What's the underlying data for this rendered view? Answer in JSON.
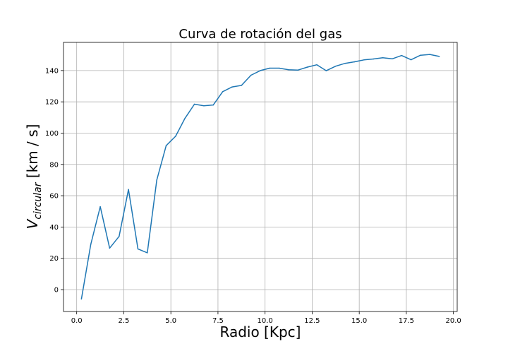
{
  "chart_data": {
    "type": "line",
    "title": "Curva de rotación del gas",
    "xlabel": "Radio [Kpc]",
    "ylabel_main": "V",
    "ylabel_sub": "circular",
    "ylabel_units": " [km / s]",
    "xlim": [
      -0.7,
      20.2
    ],
    "ylim": [
      -14,
      158
    ],
    "xticks": [
      0.0,
      2.5,
      5.0,
      7.5,
      10.0,
      12.5,
      15.0,
      17.5,
      20.0
    ],
    "xtick_labels": [
      "0.0",
      "2.5",
      "5.0",
      "7.5",
      "10.0",
      "12.5",
      "15.0",
      "17.5",
      "20.0"
    ],
    "yticks": [
      0,
      20,
      40,
      60,
      80,
      100,
      120,
      140
    ],
    "ytick_labels": [
      "0",
      "20",
      "40",
      "60",
      "80",
      "100",
      "120",
      "140"
    ],
    "grid": true,
    "line_color": "#1f77b4",
    "series": [
      {
        "x": [
          0.25,
          0.75,
          1.25,
          1.75,
          2.25,
          2.75,
          3.25,
          3.75,
          4.25,
          4.75,
          5.25,
          5.75,
          6.25,
          6.75,
          7.25,
          7.75,
          8.25,
          8.75,
          9.25,
          9.75,
          10.25,
          10.75,
          11.25,
          11.75,
          12.25,
          12.75,
          13.25,
          13.75,
          14.25,
          14.75,
          15.25,
          15.75,
          16.25,
          16.75,
          17.25,
          17.75,
          18.25,
          18.75,
          19.25
        ],
        "y": [
          -6,
          29,
          53,
          26.5,
          34,
          64,
          26,
          23.5,
          70,
          92,
          98,
          109.5,
          118.5,
          117.5,
          118,
          126.5,
          129.5,
          130.5,
          137,
          140,
          141.5,
          141.5,
          140.5,
          140.3,
          142.2,
          143.7,
          139.9,
          142.8,
          144.6,
          145.6,
          146.8,
          147.4,
          148.2,
          147.5,
          149.6,
          146.9,
          149.8,
          150.3,
          149
        ]
      }
    ]
  }
}
